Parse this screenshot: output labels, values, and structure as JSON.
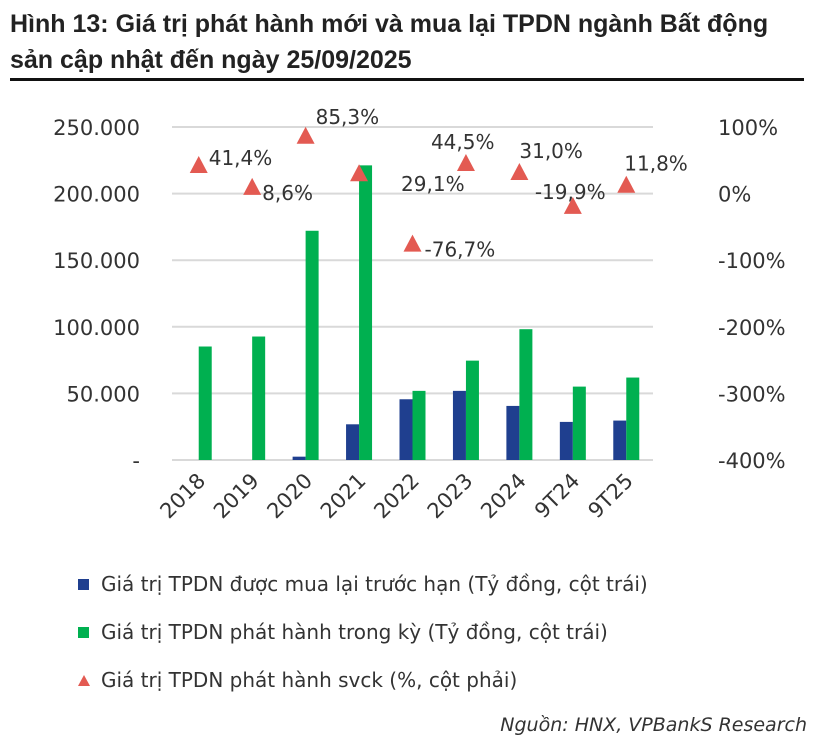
{
  "title": "Hình 13: Giá trị phát hành mới và mua lại TPDN ngành Bất động sản cập nhật đến ngày 25/09/2025",
  "source": "Nguồn: HNX, VPBankS Research",
  "chart_data": {
    "type": "bar+scatter",
    "title": "Hình 13: Giá trị phát hành mới và mua lại TPDN ngành Bất động sản cập nhật đến ngày 25/09/2025",
    "categories": [
      "2018",
      "2019",
      "2020",
      "2021",
      "2022",
      "2023",
      "2024",
      "9T24",
      "9T25"
    ],
    "left_axis": {
      "ylim": [
        0,
        250000
      ],
      "ticks": [
        "-",
        "50.000",
        "100.000",
        "150.000",
        "200.000",
        "250.000"
      ]
    },
    "right_axis": {
      "ylim": [
        -400,
        100
      ],
      "ticks": [
        "-400%",
        "-300%",
        "-200%",
        "-100%",
        "0%",
        "100%"
      ]
    },
    "grid": true,
    "legend_position": "bottom",
    "series": [
      {
        "name": "Giá trị TPDN được mua lại trước hạn (Tỷ đồng, cột trái)",
        "type": "bar",
        "axis": "left",
        "color": "#1f3f8f",
        "values": [
          0,
          0,
          2500,
          26800,
          45600,
          51900,
          40600,
          28600,
          29600
        ]
      },
      {
        "name": "Giá trị TPDN phát hành trong kỳ (Tỷ đồng, cột trái)",
        "type": "bar",
        "axis": "left",
        "color": "#00b050",
        "values": [
          85200,
          92700,
          172100,
          221200,
          51900,
          74600,
          98200,
          55100,
          61900
        ]
      },
      {
        "name": "Giá trị TPDN phát hành svck (%, cột phải)",
        "type": "scatter",
        "axis": "right",
        "color": "#e35a52",
        "values": [
          41.4,
          8.6,
          85.3,
          29.1,
          -76.7,
          44.5,
          31.0,
          -19.9,
          11.8
        ],
        "labels": [
          "41,4%",
          "8,6%",
          "85,3%",
          "29,1%",
          "-76,7%",
          "44,5%",
          "31,0%",
          "-19,9%",
          "11,8%"
        ]
      }
    ]
  }
}
